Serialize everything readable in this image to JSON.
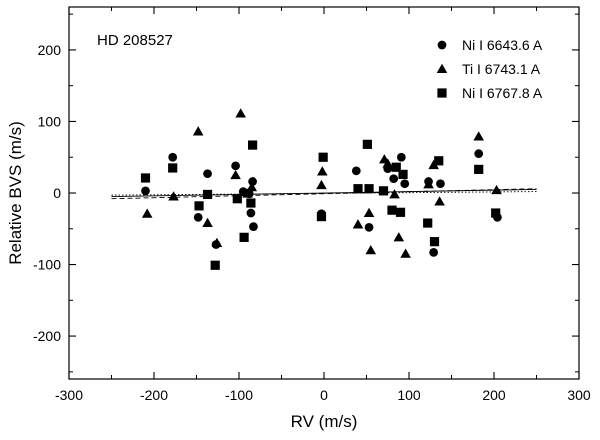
{
  "chart_data": {
    "type": "scatter",
    "title": "HD 208527",
    "xlabel": "RV (m/s)",
    "ylabel": "Relative BVS (m/s)",
    "xlim": [
      -300,
      300
    ],
    "ylim": [
      -260,
      260
    ],
    "xticks": [
      -300,
      -200,
      -100,
      0,
      100,
      200,
      300
    ],
    "yticks": [
      -200,
      -100,
      0,
      100,
      200
    ],
    "legend_position": "top-right",
    "series": [
      {
        "name": "Ni I 6643.6 A",
        "marker": "circle",
        "x": [
          -210,
          -178,
          -148,
          -137,
          -127,
          -104,
          -95,
          -88,
          -86,
          -84,
          -83,
          -3,
          38,
          53,
          75,
          82,
          91,
          95,
          123,
          129,
          137,
          182,
          204
        ],
        "y": [
          3,
          50,
          -34,
          27,
          -72,
          38,
          2,
          -1,
          -28,
          16,
          -47,
          -29,
          31,
          -48,
          34,
          20,
          50,
          13,
          16,
          -83,
          13,
          55,
          -34
        ]
      },
      {
        "name": "Ti I 6743.1 A",
        "marker": "triangle",
        "x": [
          -208,
          -177,
          -148,
          -137,
          -126,
          -104,
          -98,
          -90,
          -85,
          -3,
          -2,
          40,
          53,
          55,
          71,
          75,
          83,
          88,
          96,
          123,
          129,
          136,
          182,
          203
        ],
        "y": [
          -29,
          -5,
          86,
          -42,
          -70,
          25,
          111,
          -1,
          8,
          11,
          30,
          -44,
          -28,
          -80,
          47,
          41,
          -2,
          -62,
          -85,
          12,
          39,
          -12,
          79,
          4
        ]
      },
      {
        "name": "Ni I 6767.8 A",
        "marker": "square",
        "x": [
          -210,
          -178,
          -147,
          -137,
          -128,
          -102,
          -94,
          -86,
          -84,
          -3,
          -1,
          40,
          51,
          53,
          70,
          80,
          85,
          90,
          93,
          122,
          130,
          135,
          182,
          202
        ],
        "y": [
          21,
          35,
          -18,
          -2,
          -101,
          -8,
          -62,
          -14,
          67,
          -33,
          50,
          6,
          68,
          6,
          3,
          -24,
          36,
          -27,
          26,
          -42,
          -68,
          45,
          33,
          -28
        ]
      }
    ],
    "fit_lines": [
      {
        "style": "solid",
        "x": [
          -250,
          250
        ],
        "y": [
          -5,
          5
        ]
      },
      {
        "style": "dashed",
        "x": [
          -250,
          250
        ],
        "y": [
          -8,
          6
        ]
      },
      {
        "style": "dotted",
        "x": [
          -250,
          250
        ],
        "y": [
          -3,
          2
        ]
      }
    ]
  }
}
